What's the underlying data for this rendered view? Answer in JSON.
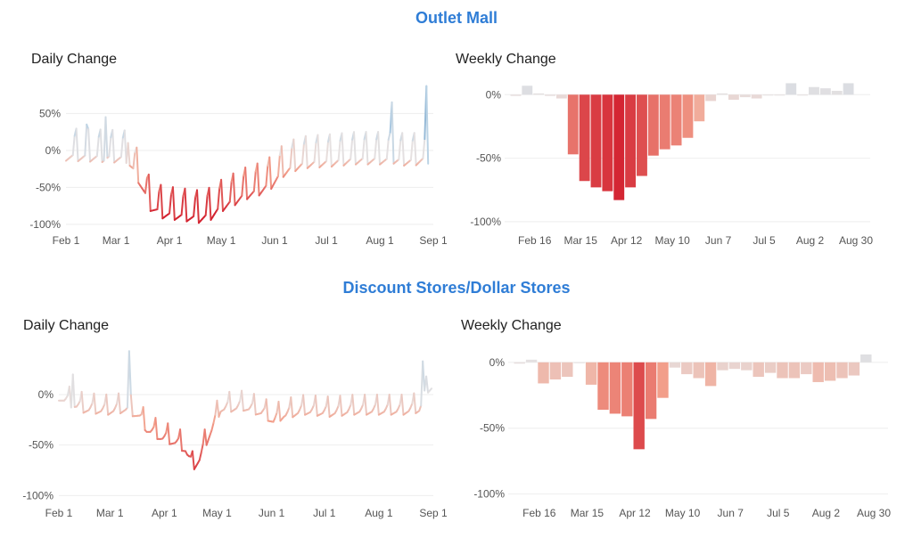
{
  "sections": [
    {
      "title": "Outlet Mall",
      "daily": {
        "title": "Daily Change"
      },
      "weekly": {
        "title": "Weekly Change"
      }
    },
    {
      "title": "Discount Stores/Dollar Stores",
      "daily": {
        "title": "Daily Change"
      },
      "weekly": {
        "title": "Weekly Change"
      }
    }
  ],
  "colors": {
    "positive": "#4a7fb0",
    "positive_light": "#b4d1e6",
    "neutral": "#e6e1e1",
    "negative_light": "#f3a18c",
    "negative": "#d32230",
    "grid": "#eeeeee",
    "axis_text": "#555555",
    "title_accent": "#2f7dd6"
  },
  "chart_data": [
    {
      "id": "outlet-daily",
      "type": "line",
      "title": "Daily Change",
      "xlabel": "",
      "ylabel": "",
      "x_start": "Feb 1",
      "x_end": "Sep 1",
      "ylim": [
        -105,
        95
      ],
      "yticks": [
        50,
        0,
        -50,
        -100
      ],
      "ytick_labels": [
        "50%",
        "0%",
        "-50%",
        "-100%"
      ],
      "xtick_labels": [
        "Feb 1",
        "Mar 1",
        "Apr 1",
        "May 1",
        "Jun 1",
        "Jul 1",
        "Aug 1",
        "Sep 1"
      ],
      "xtick_days": [
        0,
        29,
        60,
        90,
        121,
        151,
        182,
        213
      ],
      "grid": true,
      "weekly_pattern": [
        -14,
        -12,
        -10,
        -8,
        -6,
        20,
        30
      ],
      "baseline": [
        {
          "day": 0,
          "value": 0
        },
        {
          "day": 35,
          "value": -3
        },
        {
          "day": 42,
          "value": -30
        },
        {
          "day": 49,
          "value": -68
        },
        {
          "day": 56,
          "value": -78
        },
        {
          "day": 63,
          "value": -80
        },
        {
          "day": 70,
          "value": -82
        },
        {
          "day": 77,
          "value": -84
        },
        {
          "day": 84,
          "value": -80
        },
        {
          "day": 91,
          "value": -68
        },
        {
          "day": 98,
          "value": -60
        },
        {
          "day": 105,
          "value": -52
        },
        {
          "day": 112,
          "value": -47
        },
        {
          "day": 119,
          "value": -38
        },
        {
          "day": 126,
          "value": -22
        },
        {
          "day": 133,
          "value": -14
        },
        {
          "day": 140,
          "value": -10
        },
        {
          "day": 154,
          "value": -8
        },
        {
          "day": 168,
          "value": -5
        },
        {
          "day": 182,
          "value": -5
        },
        {
          "day": 200,
          "value": -7
        },
        {
          "day": 210,
          "value": -4
        }
      ],
      "spikes": [
        {
          "day": 12,
          "value": 35
        },
        {
          "day": 23,
          "value": 45
        },
        {
          "day": 36,
          "value": 10
        },
        {
          "day": 189,
          "value": 65
        },
        {
          "day": 209,
          "value": 87
        }
      ]
    },
    {
      "id": "outlet-weekly",
      "type": "bar",
      "title": "Weekly Change",
      "xlabel": "",
      "ylabel": "",
      "ylim": [
        -105,
        10
      ],
      "yticks": [
        0,
        -50,
        -100
      ],
      "ytick_labels": [
        "0%",
        "-50%",
        "-100%"
      ],
      "grid": true,
      "xtick_labels": [
        "Feb 16",
        "Mar 15",
        "Apr 12",
        "May 10",
        "Jun 7",
        "Jul 5",
        "Aug 2",
        "Aug 30"
      ],
      "xtick_index": [
        2,
        6,
        10,
        14,
        18,
        22,
        26,
        30
      ],
      "values": [
        -1,
        7,
        1,
        -1,
        -3,
        -47,
        -68,
        -73,
        -76,
        -83,
        -73,
        -64,
        -48,
        -43,
        -40,
        -34,
        -21,
        -5,
        1,
        -4,
        -2,
        -3,
        0,
        0,
        9,
        0,
        6,
        5,
        3,
        9
      ]
    },
    {
      "id": "discount-daily",
      "type": "line",
      "title": "Daily Change",
      "xlabel": "",
      "ylabel": "",
      "x_start": "Feb 1",
      "x_end": "Sep 1",
      "ylim": [
        -105,
        45
      ],
      "yticks": [
        0,
        -50,
        -100
      ],
      "ytick_labels": [
        "0%",
        "-50%",
        "-100%"
      ],
      "xtick_labels": [
        "Feb 1",
        "Mar 1",
        "Apr 1",
        "May 1",
        "Jun 1",
        "Jul 1",
        "Aug 1",
        "Sep 1"
      ],
      "xtick_days": [
        0,
        29,
        60,
        90,
        121,
        151,
        182,
        213
      ],
      "grid": true,
      "weekly_pattern": [
        -6,
        -5,
        -4,
        -3,
        0,
        4,
        14
      ],
      "baseline": [
        {
          "day": 0,
          "value": 0
        },
        {
          "day": 6,
          "value": -6
        },
        {
          "day": 14,
          "value": -12
        },
        {
          "day": 28,
          "value": -14
        },
        {
          "day": 38,
          "value": -12
        },
        {
          "day": 45,
          "value": -18
        },
        {
          "day": 50,
          "value": -32
        },
        {
          "day": 58,
          "value": -40
        },
        {
          "day": 66,
          "value": -45
        },
        {
          "day": 72,
          "value": -52
        },
        {
          "day": 76,
          "value": -70
        },
        {
          "day": 80,
          "value": -62
        },
        {
          "day": 84,
          "value": -44
        },
        {
          "day": 88,
          "value": -28
        },
        {
          "day": 92,
          "value": -12
        },
        {
          "day": 105,
          "value": -10
        },
        {
          "day": 116,
          "value": -16
        },
        {
          "day": 122,
          "value": -24
        },
        {
          "day": 128,
          "value": -18
        },
        {
          "day": 140,
          "value": -14
        },
        {
          "day": 154,
          "value": -16
        },
        {
          "day": 168,
          "value": -14
        },
        {
          "day": 182,
          "value": -14
        },
        {
          "day": 196,
          "value": -14
        },
        {
          "day": 205,
          "value": -12
        },
        {
          "day": 210,
          "value": 8
        },
        {
          "day": 212,
          "value": 10
        }
      ],
      "spikes": [
        {
          "day": 8,
          "value": 20
        },
        {
          "day": 40,
          "value": 43
        },
        {
          "day": 207,
          "value": 33
        }
      ]
    },
    {
      "id": "discount-weekly",
      "type": "bar",
      "title": "Weekly Change",
      "xlabel": "",
      "ylabel": "",
      "ylim": [
        -105,
        10
      ],
      "yticks": [
        0,
        -50,
        -100
      ],
      "ytick_labels": [
        "0%",
        "-50%",
        "-100%"
      ],
      "grid": true,
      "xtick_labels": [
        "Feb 16",
        "Mar 15",
        "Apr 12",
        "May 10",
        "Jun 7",
        "Jul 5",
        "Aug 2",
        "Aug 30"
      ],
      "xtick_index": [
        2,
        6,
        10,
        14,
        18,
        22,
        26,
        30
      ],
      "values": [
        -1,
        2,
        -16,
        -13,
        -11,
        0,
        -17,
        -36,
        -39,
        -41,
        -66,
        -43,
        -27,
        -4,
        -9,
        -12,
        -18,
        -6,
        -5,
        -6,
        -11,
        -8,
        -12,
        -12,
        -9,
        -15,
        -14,
        -12,
        -10,
        6
      ]
    }
  ]
}
